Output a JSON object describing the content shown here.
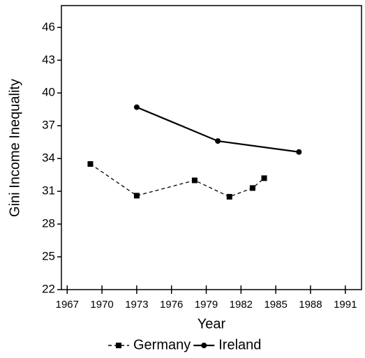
{
  "chart_data": {
    "type": "line",
    "x_label": "Year",
    "y_label": "Gini Income Inequality",
    "xlim": [
      1966.5,
      1992.4
    ],
    "xticks": [
      1967,
      1970,
      1973,
      1976,
      1979,
      1982,
      1985,
      1988,
      1991
    ],
    "ylim": [
      22,
      48
    ],
    "yticks": [
      22,
      25,
      28,
      31,
      34,
      37,
      40,
      43,
      46
    ],
    "grid": false,
    "legend": "bottom",
    "series": [
      {
        "name": "Germany",
        "color": "#000000",
        "linestyle": "dashed",
        "marker": "square",
        "x": [
          1969,
          1973,
          1978,
          1981,
          1983,
          1984
        ],
        "values": [
          33.5,
          30.6,
          32.0,
          30.5,
          31.3,
          32.2
        ]
      },
      {
        "name": "Ireland",
        "color": "#000000",
        "linestyle": "solid",
        "marker": "circle",
        "x": [
          1973,
          1980,
          1987
        ],
        "values": [
          38.7,
          35.6,
          34.6
        ]
      }
    ]
  }
}
